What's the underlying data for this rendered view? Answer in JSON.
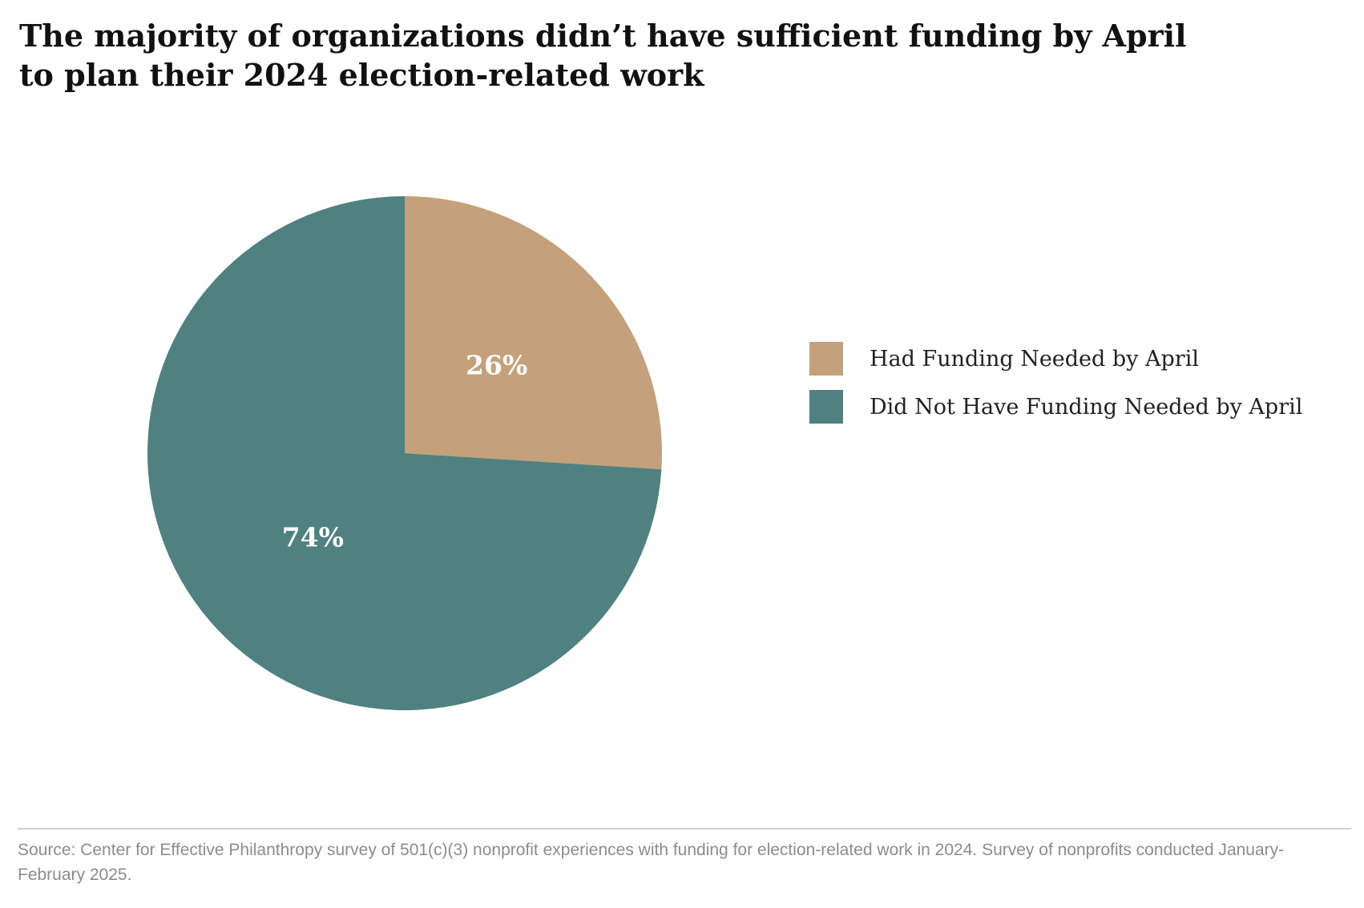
{
  "chart_data": {
    "type": "pie",
    "title": "The majority of organizations didn’t have sufficient funding by April to plan their 2024 election-related work",
    "slices": [
      {
        "name": "Had Funding Needed by April",
        "value": 26,
        "label": "26%",
        "color": "#C4A17A"
      },
      {
        "name": "Did Not Have Funding Needed by April",
        "value": 74,
        "label": "74%",
        "color": "#4E8180"
      }
    ],
    "legend_position": "right",
    "source": "Source: Center for Effective Philanthropy survey of 501(c)(3) nonprofit experiences with funding for election-related work in 2024. Survey of nonprofits conducted January-February 2025."
  }
}
